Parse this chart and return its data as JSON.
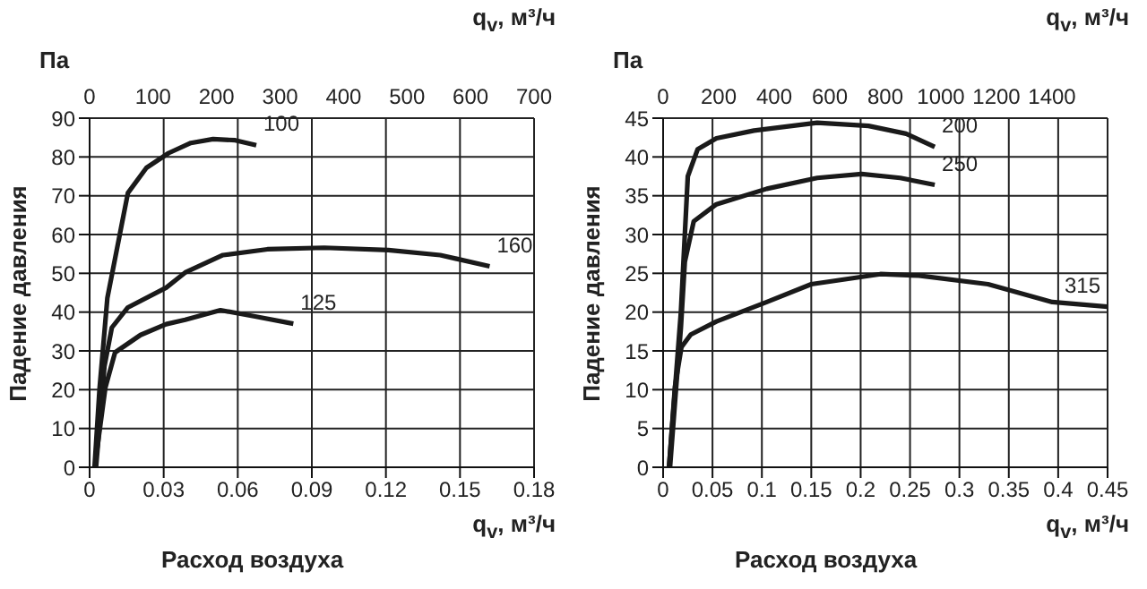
{
  "chart_data": [
    {
      "type": "line",
      "xlabel": "Расход воздуха",
      "ylabel": "Падение давления",
      "x2label": "q$_{v}$, м³/ч",
      "annotations": [
        "Па",
        "q$_{v}$, м³/ч"
      ],
      "xlim": [
        0,
        0.18
      ],
      "xticks": [
        0,
        0.03,
        0.06,
        0.09,
        0.12,
        0.15,
        0.18
      ],
      "x2lim": [
        0,
        700
      ],
      "x2ticks": [
        0,
        100,
        200,
        300,
        400,
        500,
        600,
        700
      ],
      "ylim": [
        0,
        90
      ],
      "yticks": [
        0,
        10,
        20,
        30,
        40,
        50,
        60,
        70,
        80,
        90
      ],
      "grid": true,
      "marker": "none",
      "line_style": "solid",
      "series": [
        {
          "name": "100",
          "color": "#1a1a1a",
          "x": [
            0.002,
            0.004,
            0.0072,
            0.0155,
            0.023,
            0.032,
            0.041,
            0.05,
            0.059,
            0.0675
          ],
          "values": [
            0,
            20,
            43.7,
            70.7,
            77.2,
            81,
            83.6,
            84.6,
            84.3,
            83
          ]
        },
        {
          "name": "160",
          "color": "#1a1a1a",
          "x": [
            0.0026,
            0.006,
            0.009,
            0.0155,
            0.031,
            0.0387,
            0.054,
            0.072,
            0.095,
            0.121,
            0.142,
            0.162
          ],
          "values": [
            0,
            26,
            36,
            41.2,
            46.3,
            50.2,
            54.7,
            56.2,
            56.6,
            56,
            54.7,
            51.8
          ]
        },
        {
          "name": "125",
          "color": "#1a1a1a",
          "x": [
            0.0026,
            0.0064,
            0.0103,
            0.0206,
            0.031,
            0.0387,
            0.053,
            0.067,
            0.0825
          ],
          "values": [
            2.6,
            20.6,
            29.6,
            34.1,
            36.9,
            38,
            40.5,
            38.9,
            37
          ]
        }
      ]
    },
    {
      "type": "line",
      "xlabel": "Расход воздуха",
      "ylabel": "Падение давления",
      "x2label": "q$_{v}$, м³/ч",
      "annotations": [
        "Па",
        "q$_{v}$, м³/ч"
      ],
      "xlim": [
        0,
        0.45
      ],
      "xticks": [
        0,
        0.05,
        0.1,
        0.15,
        0.2,
        0.25,
        0.3,
        0.35,
        0.4,
        0.45
      ],
      "x2lim": [
        0,
        1600
      ],
      "x2ticks": [
        0,
        200,
        400,
        600,
        800,
        1000,
        1200,
        1400
      ],
      "ylim": [
        0,
        45
      ],
      "yticks": [
        0,
        5,
        10,
        15,
        20,
        25,
        30,
        35,
        40,
        45
      ],
      "grid": true,
      "marker": "none",
      "line_style": "solid",
      "series": [
        {
          "name": "200",
          "color": "#1a1a1a",
          "x": [
            0.006,
            0.012,
            0.018,
            0.022,
            0.025,
            0.035,
            0.054,
            0.092,
            0.156,
            0.208,
            0.246,
            0.275
          ],
          "values": [
            0,
            10,
            20,
            30,
            37.5,
            41,
            42.4,
            43.4,
            44.4,
            44,
            43,
            41.3
          ]
        },
        {
          "name": "250",
          "color": "#1a1a1a",
          "x": [
            0.007,
            0.013,
            0.018,
            0.022,
            0.031,
            0.054,
            0.105,
            0.156,
            0.201,
            0.24,
            0.275
          ],
          "values": [
            0,
            10,
            18,
            26.5,
            31.7,
            33.9,
            35.9,
            37.3,
            37.8,
            37.3,
            36.4
          ]
        },
        {
          "name": "315",
          "color": "#1a1a1a",
          "x": [
            0.006,
            0.012,
            0.0186,
            0.028,
            0.054,
            0.105,
            0.15,
            0.22,
            0.259,
            0.329,
            0.394,
            0.45
          ],
          "values": [
            0,
            10.4,
            15.5,
            17.1,
            18.8,
            21.3,
            23.6,
            24.9,
            24.7,
            23.6,
            21.3,
            20.7
          ]
        }
      ]
    }
  ]
}
